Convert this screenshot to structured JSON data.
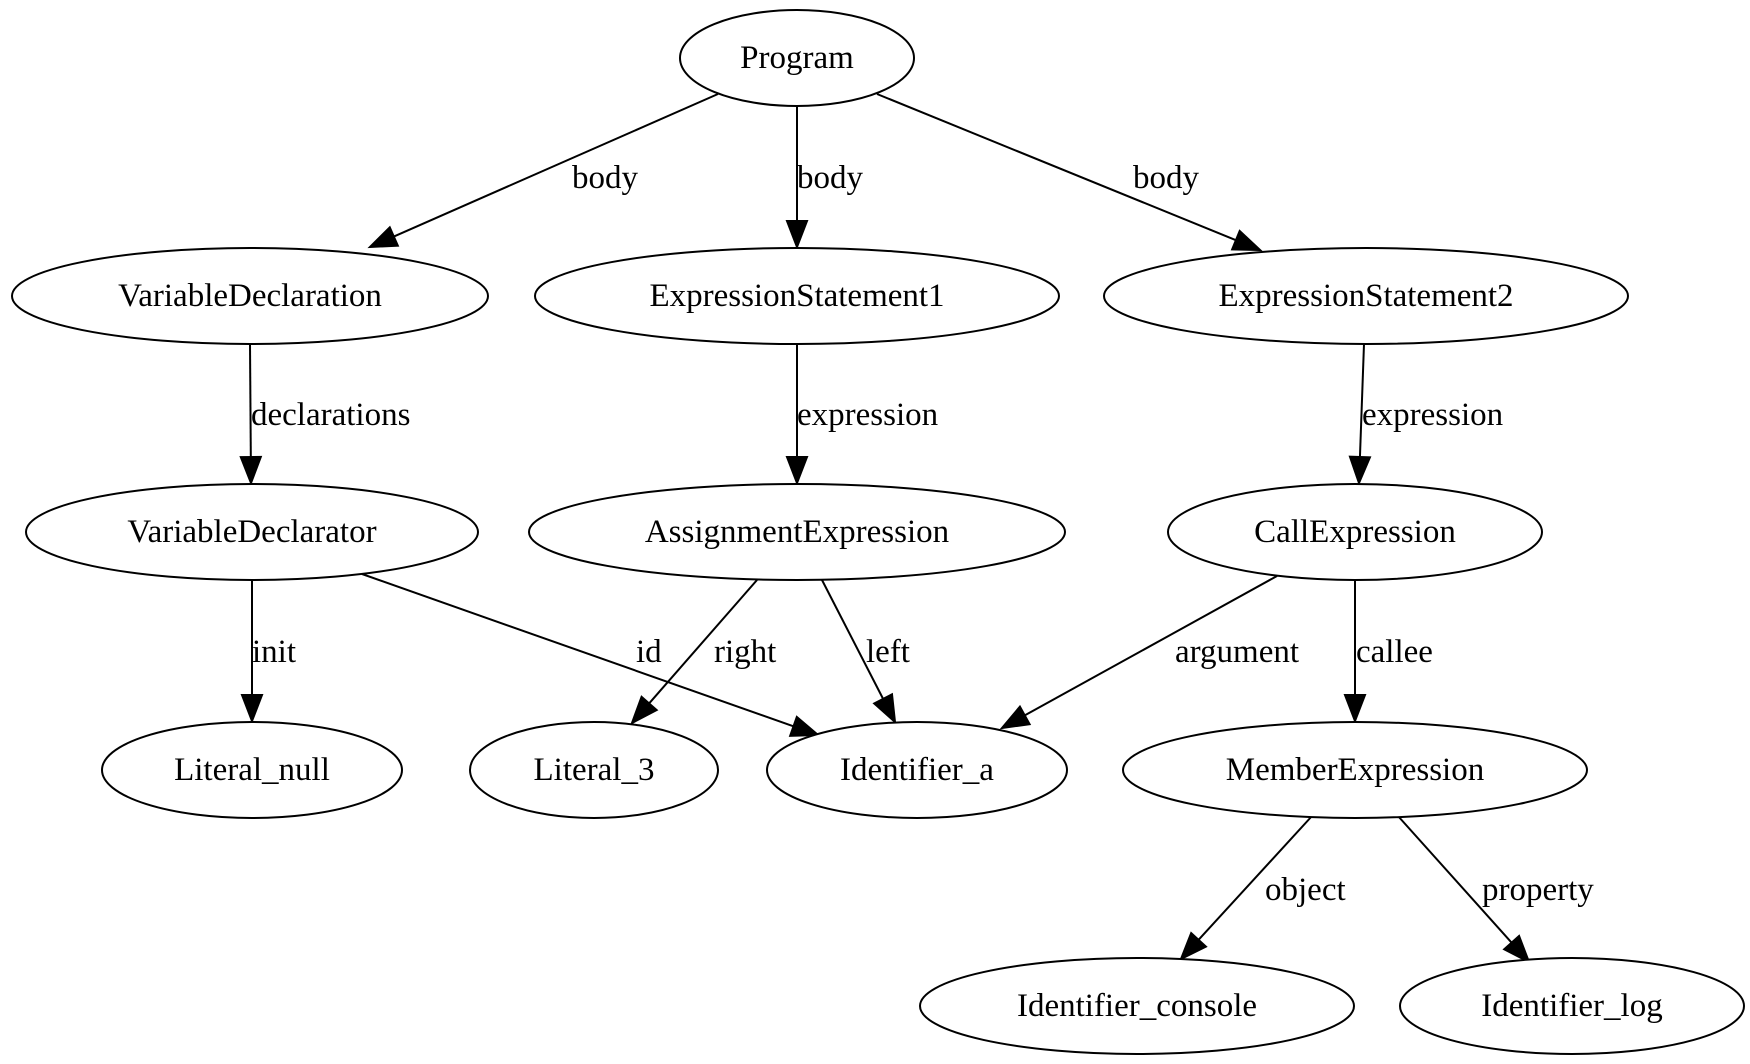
{
  "nodes": [
    {
      "id": "program",
      "label": "Program"
    },
    {
      "id": "vardecl",
      "label": "VariableDeclaration"
    },
    {
      "id": "exprstmt1",
      "label": "ExpressionStatement1"
    },
    {
      "id": "exprstmt2",
      "label": "ExpressionStatement2"
    },
    {
      "id": "vardeclarator",
      "label": "VariableDeclarator"
    },
    {
      "id": "assignexpr",
      "label": "AssignmentExpression"
    },
    {
      "id": "callexpr",
      "label": "CallExpression"
    },
    {
      "id": "literal_null",
      "label": "Literal_null"
    },
    {
      "id": "literal_3",
      "label": "Literal_3"
    },
    {
      "id": "identifier_a",
      "label": "Identifier_a"
    },
    {
      "id": "memberexpr",
      "label": "MemberExpression"
    },
    {
      "id": "identifier_console",
      "label": "Identifier_console"
    },
    {
      "id": "identifier_log",
      "label": "Identifier_log"
    }
  ],
  "edges": [
    {
      "from": "program",
      "to": "vardecl",
      "label": "body"
    },
    {
      "from": "program",
      "to": "exprstmt1",
      "label": "body"
    },
    {
      "from": "program",
      "to": "exprstmt2",
      "label": "body"
    },
    {
      "from": "vardecl",
      "to": "vardeclarator",
      "label": "declarations"
    },
    {
      "from": "exprstmt1",
      "to": "assignexpr",
      "label": "expression"
    },
    {
      "from": "exprstmt2",
      "to": "callexpr",
      "label": "expression"
    },
    {
      "from": "vardeclarator",
      "to": "literal_null",
      "label": "init"
    },
    {
      "from": "vardeclarator",
      "to": "identifier_a",
      "label": "id"
    },
    {
      "from": "assignexpr",
      "to": "literal_3",
      "label": "right"
    },
    {
      "from": "assignexpr",
      "to": "identifier_a",
      "label": "left"
    },
    {
      "from": "callexpr",
      "to": "identifier_a",
      "label": "argument"
    },
    {
      "from": "callexpr",
      "to": "memberexpr",
      "label": "callee"
    },
    {
      "from": "memberexpr",
      "to": "identifier_console",
      "label": "object"
    },
    {
      "from": "memberexpr",
      "to": "identifier_log",
      "label": "property"
    }
  ]
}
